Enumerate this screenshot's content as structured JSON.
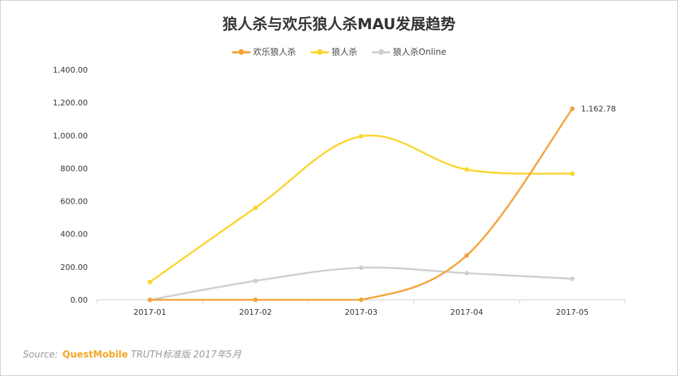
{
  "chart_data": {
    "type": "line",
    "title": "狼人杀与欢乐狼人杀MAU发展趋势",
    "categories": [
      "2017-01",
      "2017-02",
      "2017-03",
      "2017-04",
      "2017-05"
    ],
    "ylim": [
      0,
      1400
    ],
    "yticks": [
      "0.00",
      "200.00",
      "400.00",
      "600.00",
      "800.00",
      "1,000.00",
      "1,200.00",
      "1,400.00"
    ],
    "legend_position": "top-center",
    "grid": false,
    "series": [
      {
        "name": "欢乐狼人杀",
        "color": "#f5a33c",
        "values": [
          0,
          0,
          0,
          270,
          1162.78
        ]
      },
      {
        "name": "狼人杀",
        "color": "#fbd530",
        "values": [
          108,
          560,
          995,
          793,
          768
        ]
      },
      {
        "name": "狼人杀Online",
        "color": "#cfcfcf",
        "values": [
          0,
          115,
          195,
          162,
          128
        ]
      }
    ],
    "annotation": {
      "series": 0,
      "index": 4,
      "text": "1,162.78"
    }
  },
  "source": {
    "label": "Source:",
    "brand": "QuestMobile",
    "text": "TRUTH标准版 2017年5月"
  }
}
